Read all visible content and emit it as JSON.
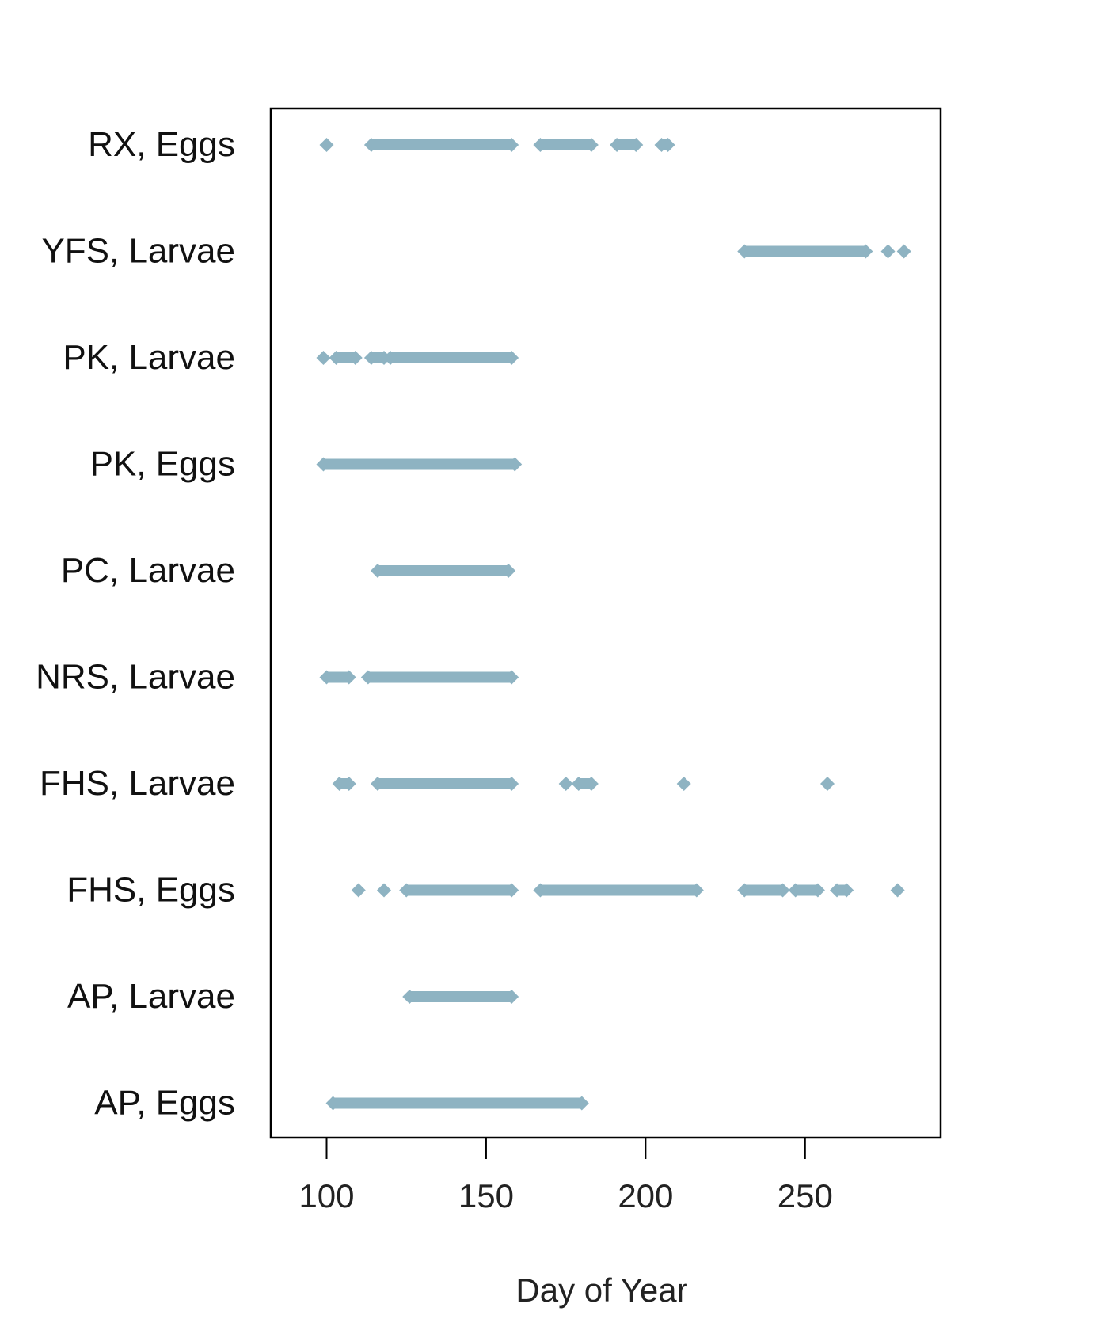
{
  "chart_data": {
    "type": "scatter",
    "title": "",
    "xlabel": "Day of Year",
    "ylabel": "",
    "xlim": [
      82.5,
      292.5
    ],
    "xticks": [
      100,
      150,
      200,
      250
    ],
    "grid": false,
    "legend": "none",
    "point_color": "#8eb3c2",
    "categories": [
      "RX, Eggs",
      "YFS, Larvae",
      "PK, Larvae",
      "PK, Eggs",
      "PC, Larvae",
      "NRS, Larvae",
      "FHS, Larvae",
      "FHS, Eggs",
      "AP, Larvae",
      "AP, Eggs"
    ],
    "series": [
      {
        "category": "RX, Eggs",
        "clusters": [
          [
            100,
            100
          ],
          [
            114,
            158
          ],
          [
            167,
            183
          ],
          [
            191,
            197
          ],
          [
            205,
            207
          ]
        ]
      },
      {
        "category": "YFS, Larvae",
        "clusters": [
          [
            231,
            269
          ],
          [
            276,
            276
          ],
          [
            281,
            281
          ]
        ]
      },
      {
        "category": "PK, Larvae",
        "clusters": [
          [
            99,
            99
          ],
          [
            103,
            109
          ],
          [
            114,
            118
          ],
          [
            120,
            158
          ]
        ]
      },
      {
        "category": "PK, Eggs",
        "clusters": [
          [
            99,
            159
          ]
        ]
      },
      {
        "category": "PC, Larvae",
        "clusters": [
          [
            116,
            157
          ]
        ]
      },
      {
        "category": "NRS, Larvae",
        "clusters": [
          [
            100,
            107
          ],
          [
            113,
            158
          ]
        ]
      },
      {
        "category": "FHS, Larvae",
        "clusters": [
          [
            104,
            107
          ],
          [
            116,
            158
          ],
          [
            175,
            175
          ],
          [
            179,
            183
          ],
          [
            212,
            212
          ],
          [
            257,
            257
          ]
        ]
      },
      {
        "category": "FHS, Eggs",
        "clusters": [
          [
            110,
            110
          ],
          [
            118,
            118
          ],
          [
            125,
            158
          ],
          [
            167,
            216
          ],
          [
            231,
            243
          ],
          [
            247,
            254
          ],
          [
            260,
            263
          ],
          [
            279,
            279
          ]
        ]
      },
      {
        "category": "AP, Larvae",
        "clusters": [
          [
            126,
            158
          ]
        ]
      },
      {
        "category": "AP, Eggs",
        "clusters": [
          [
            102,
            180
          ]
        ]
      }
    ]
  }
}
